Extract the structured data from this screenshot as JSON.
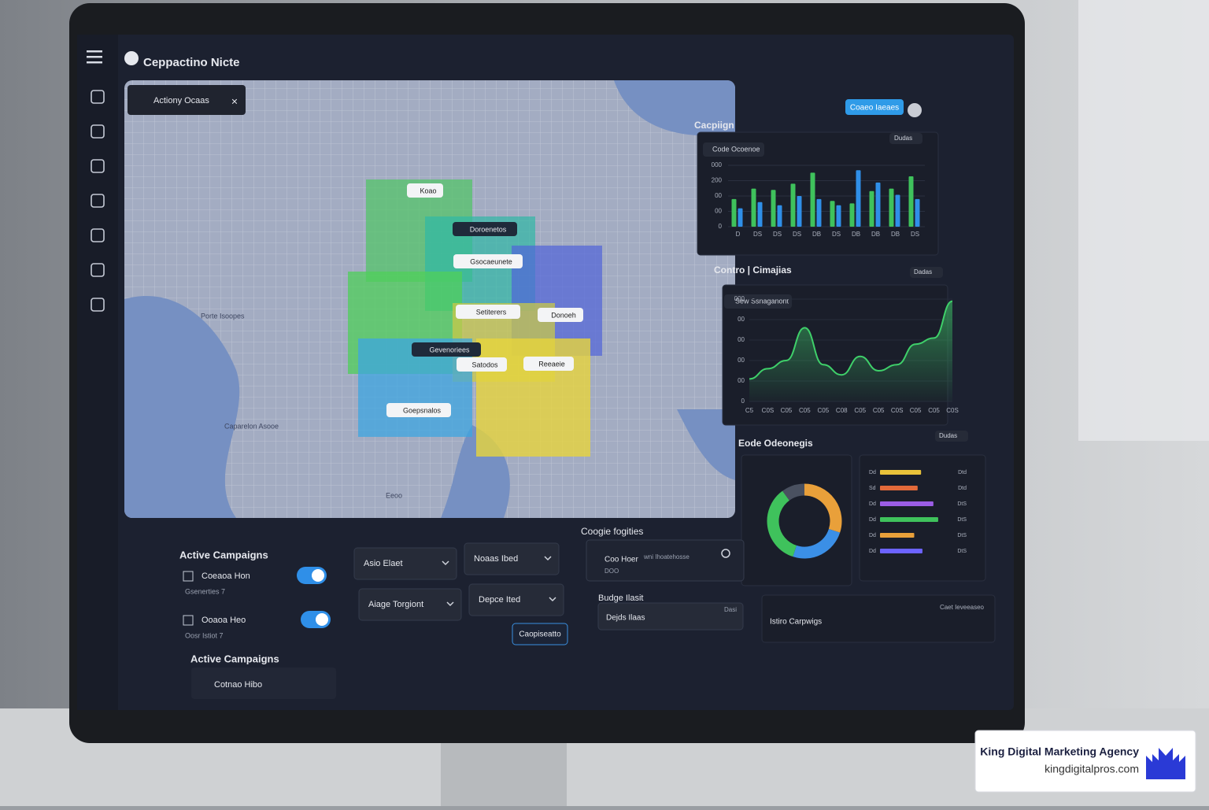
{
  "app": {
    "logo": "Ceppactino Nicte",
    "header_button": "Coaeo Iaeaes"
  },
  "map": {
    "panel_title": "Actiony Ocaas",
    "zone_labels": [
      "Koao",
      "Doroenetos",
      "Gsocaeunete",
      "Setiterers",
      "Satodos",
      "Gevenoriees",
      "Donoeh",
      "Reeaeie",
      "Goepsnalos"
    ],
    "place_labels": [
      "Porte Isoopes",
      "Caparelon Asooe",
      "Eeoo"
    ]
  },
  "chart_data": [
    {
      "type": "bar",
      "title": "Cacpiign",
      "subtitle": "Code Ocoenoe",
      "dropdown": "Dudas",
      "categories": [
        "D",
        "DS",
        "DS",
        "DS",
        "DB",
        "DS",
        "DB",
        "DB",
        "DB",
        "DS"
      ],
      "series": [
        {
          "color": "#3fc25c",
          "values": [
            45,
            62,
            60,
            70,
            88,
            42,
            38,
            58,
            62,
            82
          ]
        },
        {
          "color": "#2f8fe8",
          "values": [
            30,
            40,
            35,
            50,
            45,
            35,
            92,
            72,
            52,
            45
          ]
        }
      ],
      "ylim": [
        0,
        100
      ],
      "yticks": [
        0,
        {
          "value": 25,
          "label": "00"
        },
        {
          "value": 50,
          "label": "00"
        },
        {
          "value": 75,
          "label": "200"
        },
        {
          "value": 100,
          "label": "000"
        }
      ]
    },
    {
      "type": "line",
      "title": "Contro | Cimajias",
      "subtitle": "Sew Ssnaganont",
      "dropdown": "Dadas",
      "categories": [
        "C5",
        "C0S",
        "C05",
        "C05",
        "C05",
        "C08",
        "C05",
        "C05",
        "C0S",
        "C05",
        "C05",
        "C0S"
      ],
      "values": [
        22,
        32,
        40,
        72,
        36,
        26,
        44,
        30,
        36,
        56,
        62,
        98
      ],
      "color": "#3fd06a",
      "ylim": [
        0,
        100
      ],
      "yticks": [
        0,
        {
          "value": 20,
          "label": "00"
        },
        {
          "value": 40,
          "label": "00"
        },
        {
          "value": 60,
          "label": "00"
        },
        {
          "value": 80,
          "label": "00"
        },
        {
          "value": 100,
          "label": "000"
        }
      ]
    },
    {
      "type": "pie",
      "title": "Eode Odeonegis",
      "dropdown": "Dudas",
      "values": [
        30,
        25,
        35,
        10
      ],
      "colors": [
        "#e9a03a",
        "#3b8fe6",
        "#3fc25c",
        "#4a5160"
      ]
    },
    {
      "type": "hbar",
      "categories": [
        "Dd",
        "Sd",
        "Dd",
        "Dd",
        "Dd",
        "Dd"
      ],
      "end_labels": [
        "Dtd",
        "Dtd",
        "DtS",
        "DtS",
        "DtS",
        "DtS"
      ],
      "values": [
        60,
        55,
        78,
        85,
        50,
        62
      ],
      "colors": [
        "#e9c23a",
        "#e36a3a",
        "#9b5de5",
        "#3fc25c",
        "#e9a03a",
        "#6c63ff"
      ],
      "xlim": [
        0,
        100
      ]
    }
  ],
  "controls": {
    "active_title": "Active Campaigns",
    "campaigns": [
      {
        "name": "Coeaoa Hon",
        "detail": "Gsenerties 7"
      },
      {
        "name": "Ooaoa Heo",
        "detail": "Oosr Istiot 7"
      }
    ],
    "active_title_2": "Active Campaigns",
    "campaign_3": "Cotnao Hibo",
    "dropdowns": [
      "Asio Elaet",
      "Noaas Ibed",
      "Aiage Torgiont",
      "Depce Ited"
    ],
    "button": "Caopiseatto",
    "search_title": "Coogie fogities",
    "search_name": "Coo Hoer",
    "search_hint": "wni Ihoatehosse",
    "search_sub": "DOO",
    "budget_title": "Budge Ilasit",
    "budget_field": "Dejds Ilaas",
    "budget_value": "Dasi",
    "table_title": "Istiro Carpwigs",
    "table_link": "Caet Ieveeaseo"
  },
  "watermark": {
    "name": "King Digital Marketing Agency",
    "url": "kingdigitalpros.com"
  }
}
